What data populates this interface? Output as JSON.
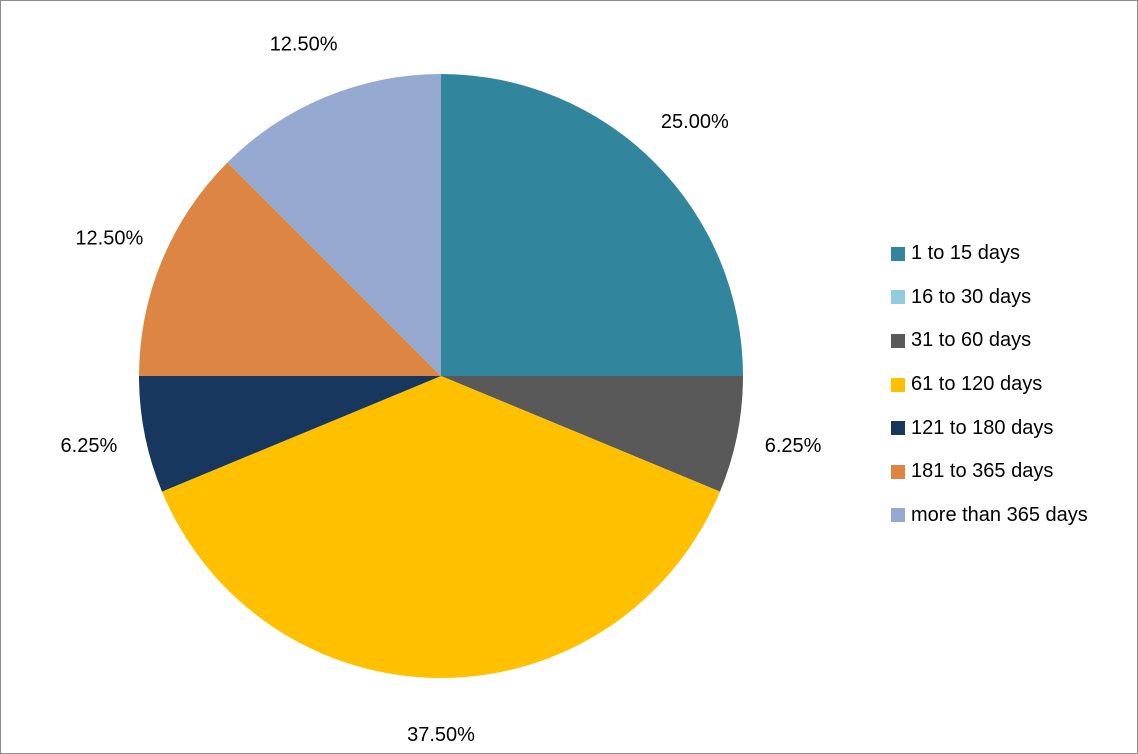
{
  "chart_data": {
    "type": "pie",
    "categories": [
      "1 to 15 days",
      "16 to 30 days",
      "31 to 60 days",
      "61 to 120 days",
      "121 to 180 days",
      "181 to 365 days",
      "more than 365 days"
    ],
    "values": [
      25.0,
      0,
      6.25,
      37.5,
      6.25,
      12.5,
      12.5
    ],
    "data_labels": [
      "25.00%",
      "",
      "6.25%",
      "37.50%",
      "6.25%",
      "12.50%",
      "12.50%"
    ],
    "colors": [
      "#31859c",
      "#93cddd",
      "#595959",
      "#ffc000",
      "#17375e",
      "#dd8643",
      "#95a9d1"
    ],
    "legend_position": "right",
    "start_angle": "12 o'clock",
    "direction": "clockwise"
  }
}
